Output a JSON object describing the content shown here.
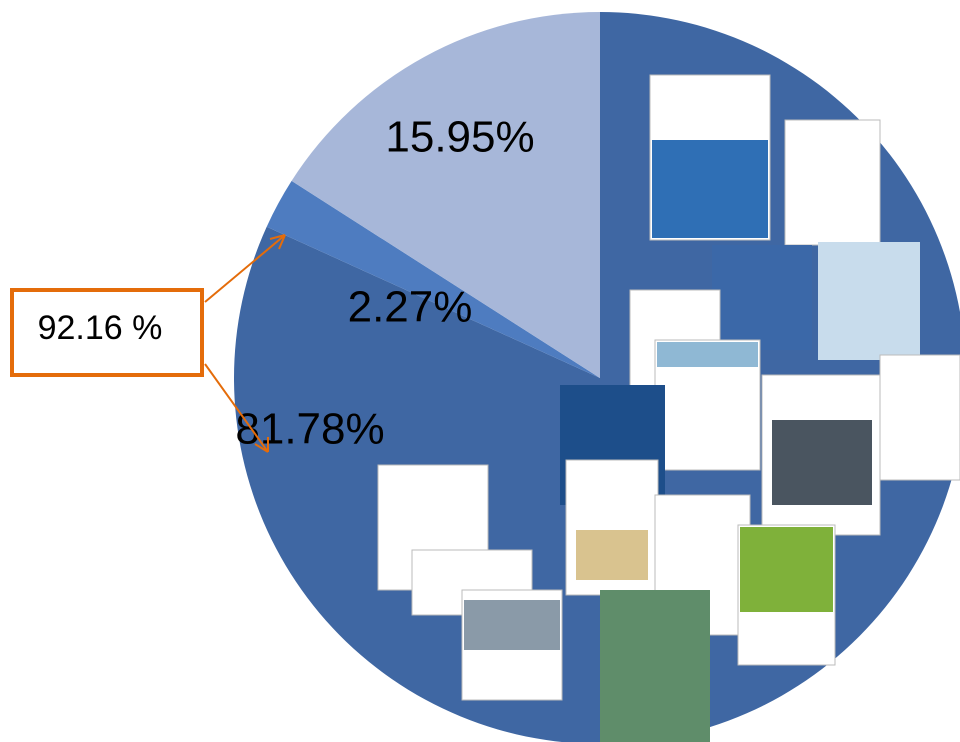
{
  "chart_data": {
    "type": "pie",
    "values": [
      81.78,
      2.27,
      15.95
    ],
    "value_labels": [
      "81.78%",
      "2.27%",
      "15.95%"
    ],
    "colors": [
      "#3f67a3",
      "#4e7cc0",
      "#a7b7d9"
    ],
    "start_angle": 90,
    "direction": "clockwise",
    "annotation": "92.16 %"
  }
}
